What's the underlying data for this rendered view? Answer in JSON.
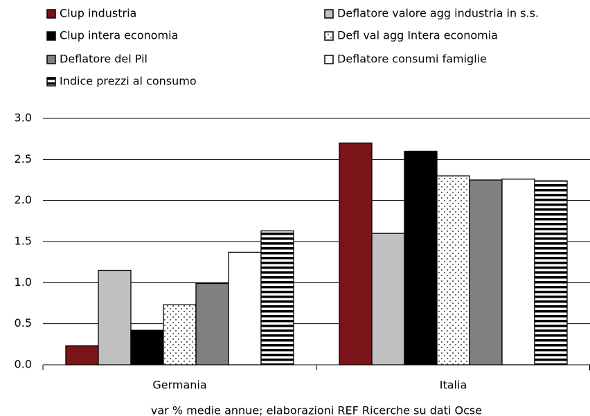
{
  "chart_data": {
    "type": "bar",
    "caption": "var % medie annue;  elaborazioni REF Ricerche su dati Ocse",
    "categories": [
      "Germania",
      "Italia"
    ],
    "series": [
      {
        "name": "Clup industria",
        "color": "#7b1418",
        "values": [
          0.23,
          2.7
        ]
      },
      {
        "name": "Deflatore valore agg industria in s.s.",
        "color": "#c0c0c0",
        "values": [
          1.15,
          1.6
        ]
      },
      {
        "name": "Clup intera economia",
        "color": "#000000",
        "values": [
          0.42,
          2.6
        ]
      },
      {
        "name": "Defl  val agg Intera economia",
        "color": "#ffffff",
        "pattern": "dots",
        "values": [
          0.73,
          2.3
        ]
      },
      {
        "name": "Deflatore del Pil",
        "color": "#808080",
        "values": [
          0.99,
          2.25
        ]
      },
      {
        "name": "Deflatore consumi  famiglie",
        "color": "#ffffff",
        "values": [
          1.37,
          2.26
        ]
      },
      {
        "name": "Indice prezzi al consumo",
        "color": "#ffffff",
        "pattern": "stripes",
        "values": [
          1.63,
          2.24
        ]
      }
    ],
    "ylim": [
      0,
      3
    ],
    "yticks": [
      {
        "value": 0,
        "label": "0.0"
      },
      0.5,
      {
        "value": 1,
        "label": "1.0"
      },
      1.5,
      {
        "value": 2,
        "label": "2.0"
      },
      2.5,
      {
        "value": 3,
        "label": "3.0"
      }
    ],
    "grid": true
  }
}
